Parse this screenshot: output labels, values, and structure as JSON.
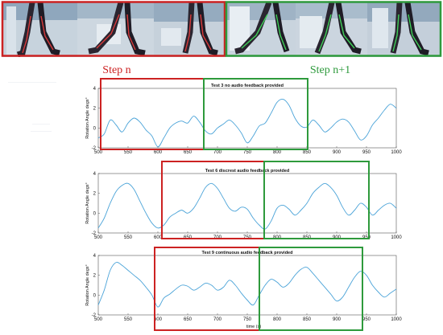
{
  "header": {
    "step_n_label": "Step n",
    "step_n1_label": "Step n+1",
    "step_n_color": "#cc2222",
    "step_n1_color": "#2e9a3c"
  },
  "axes_common": {
    "ylabel": "Rotation Angle degs°",
    "xlabel": "time (s)"
  },
  "chart_data": [
    {
      "type": "line",
      "title": "Test 3 no audio feedback provided",
      "xlim": [
        500,
        1000
      ],
      "ylim": [
        -2,
        4
      ],
      "xticks": [
        500,
        550,
        600,
        650,
        700,
        750,
        800,
        850,
        900,
        950,
        1000
      ],
      "yticks": [
        -2,
        0,
        2,
        4
      ],
      "line_color": "#4aa3d8",
      "series": [
        {
          "x": [
            500,
            510,
            520,
            530,
            540,
            550,
            560,
            570,
            580,
            590,
            600,
            610,
            620,
            630,
            640,
            650,
            660,
            670,
            680,
            690,
            700,
            710,
            720,
            730,
            740,
            750,
            760,
            770,
            780,
            790,
            800,
            810,
            820,
            830,
            840,
            850,
            860,
            870,
            880,
            890,
            900,
            910,
            920,
            930,
            940,
            950,
            960,
            970,
            980,
            990,
            1000
          ],
          "y": [
            -1.0,
            -0.6,
            0.8,
            0.3,
            -0.4,
            0.5,
            1.0,
            0.6,
            -0.2,
            -0.8,
            -1.9,
            -1.0,
            0.0,
            0.5,
            0.7,
            0.5,
            1.2,
            0.6,
            -0.3,
            -0.6,
            0.0,
            0.4,
            0.8,
            0.3,
            -0.5,
            -1.5,
            -0.8,
            0.2,
            0.5,
            1.5,
            2.6,
            2.9,
            2.3,
            1.0,
            0.2,
            0.1,
            0.8,
            0.3,
            -0.4,
            0.0,
            0.6,
            0.9,
            0.6,
            -0.3,
            -1.2,
            -0.8,
            0.3,
            1.0,
            1.8,
            2.4,
            2.0
          ]
        }
      ]
    },
    {
      "type": "line",
      "title": "Test 6 discrest audio feedback provided",
      "xlim": [
        500,
        1000
      ],
      "ylim": [
        -2,
        4
      ],
      "xticks": [
        500,
        550,
        600,
        650,
        700,
        750,
        800,
        850,
        900,
        950,
        1000
      ],
      "yticks": [
        -2,
        0,
        2,
        4
      ],
      "line_color": "#4aa3d8",
      "series": [
        {
          "x": [
            500,
            510,
            520,
            530,
            540,
            550,
            560,
            570,
            580,
            590,
            600,
            610,
            620,
            630,
            640,
            650,
            660,
            670,
            680,
            690,
            700,
            710,
            720,
            730,
            740,
            750,
            760,
            770,
            780,
            790,
            800,
            810,
            820,
            830,
            840,
            850,
            860,
            870,
            880,
            890,
            900,
            910,
            920,
            930,
            940,
            950,
            960,
            970,
            980,
            990,
            1000
          ],
          "y": [
            -1.5,
            -0.5,
            1.0,
            2.2,
            2.8,
            3.0,
            2.4,
            1.2,
            0.0,
            -1.0,
            -1.5,
            -1.2,
            -0.4,
            0.0,
            0.3,
            0.0,
            0.5,
            1.5,
            2.6,
            3.0,
            2.5,
            1.5,
            0.5,
            0.2,
            0.6,
            0.4,
            -0.5,
            -1.2,
            -1.6,
            -0.8,
            0.5,
            0.8,
            0.4,
            -0.2,
            0.3,
            1.0,
            2.0,
            2.6,
            3.0,
            2.6,
            1.8,
            0.6,
            -0.2,
            0.3,
            1.0,
            0.6,
            -0.2,
            0.3,
            0.8,
            1.0,
            0.5
          ]
        }
      ]
    },
    {
      "type": "line",
      "title": "Test 9 continuous audio feedback provided",
      "xlim": [
        500,
        1000
      ],
      "ylim": [
        -2,
        4
      ],
      "xticks": [
        500,
        550,
        600,
        650,
        700,
        750,
        800,
        850,
        900,
        950,
        1000
      ],
      "yticks": [
        -2,
        0,
        2,
        4
      ],
      "xlabel": "time (s)",
      "line_color": "#4aa3d8",
      "series": [
        {
          "x": [
            500,
            510,
            520,
            530,
            540,
            550,
            560,
            570,
            580,
            590,
            600,
            610,
            620,
            630,
            640,
            650,
            660,
            670,
            680,
            690,
            700,
            710,
            720,
            730,
            740,
            750,
            760,
            770,
            780,
            790,
            800,
            810,
            820,
            830,
            840,
            850,
            860,
            870,
            880,
            890,
            900,
            910,
            920,
            930,
            940,
            950,
            960,
            970,
            980,
            990,
            1000
          ],
          "y": [
            -1.0,
            0.5,
            2.5,
            3.3,
            3.0,
            2.5,
            2.0,
            1.5,
            0.8,
            0.0,
            -1.2,
            -0.3,
            0.1,
            0.6,
            1.0,
            0.9,
            0.5,
            0.8,
            1.2,
            1.0,
            0.5,
            0.8,
            1.5,
            1.0,
            0.2,
            -0.5,
            -1.0,
            0.0,
            1.0,
            1.6,
            1.3,
            0.8,
            1.2,
            2.0,
            2.6,
            2.8,
            2.2,
            1.5,
            0.8,
            0.1,
            -0.6,
            -0.2,
            0.8,
            1.8,
            2.4,
            2.0,
            1.0,
            0.3,
            -0.2,
            0.2,
            0.6
          ]
        }
      ]
    }
  ]
}
